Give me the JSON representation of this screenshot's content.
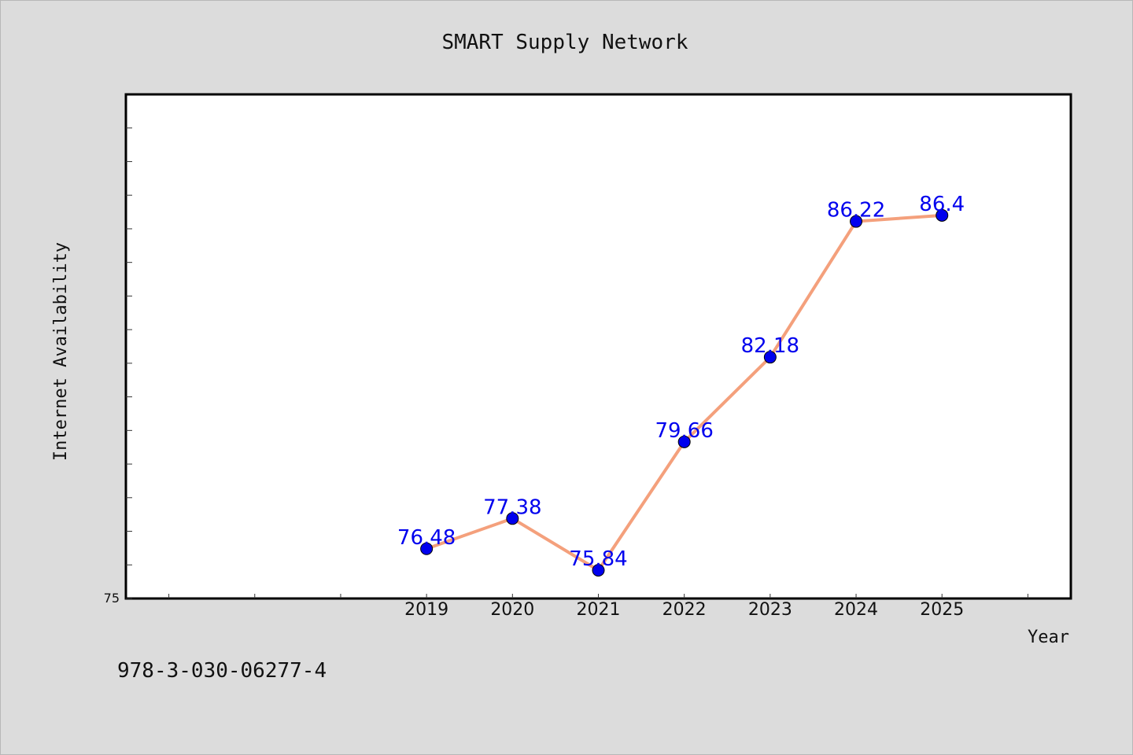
{
  "chart_data": {
    "type": "line",
    "title": "SMART Supply Network",
    "xlabel": "Year",
    "ylabel": "Internet Availability",
    "categories": [
      "2019",
      "2020",
      "2021",
      "2022",
      "2023",
      "2024",
      "2025"
    ],
    "series": [
      {
        "values": [
          76.48,
          77.38,
          75.84,
          79.66,
          82.18,
          86.22,
          86.4
        ],
        "labels": [
          "76.48",
          "77.38",
          "75.84",
          "79.66",
          "82.18",
          "86.22",
          "86.4"
        ]
      }
    ],
    "xlim": [
      2015.5,
      2026.5
    ],
    "ylim": [
      75,
      90
    ],
    "y_tick_labels": [
      "75"
    ],
    "grid": false,
    "legend": "none",
    "line_color": "#f4a07c",
    "marker_color": "#0000ee",
    "label_color": "#0000ee",
    "background": "#dcdcdc",
    "plot_background": "#ffffff"
  },
  "footer_text": "978-3-030-06277-4"
}
